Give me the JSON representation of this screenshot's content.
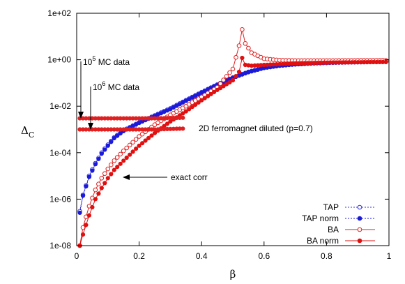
{
  "chart_data": {
    "type": "scatter",
    "x_axis": {
      "label": "β",
      "lim": [
        0,
        1
      ],
      "ticks": [
        0,
        0.2,
        0.4,
        0.6,
        0.8,
        1
      ],
      "tick_labels": [
        "0",
        "0.2",
        "0.4",
        "0.6",
        "0.8",
        "1"
      ]
    },
    "y_axis": {
      "label_main": "Δ",
      "label_sub": "C",
      "scale": "log",
      "lim": [
        1e-08,
        100
      ],
      "ticks": [
        1e-08,
        1e-06,
        0.0001,
        0.01,
        1,
        100
      ],
      "tick_labels": [
        "1e-08",
        "1e-06",
        "1e-04",
        "1e-02",
        "1e+00",
        "1e+02"
      ]
    },
    "grid": false,
    "legend_position": "bottom-right",
    "annotations": {
      "mc5": {
        "prefix": "10",
        "sup": "5",
        "suffix": " MC data"
      },
      "mc6": {
        "prefix": "10",
        "sup": "6",
        "suffix": " MC data"
      },
      "exact": "exact corr",
      "system": "2D ferromagnet diluted (p=0.7)"
    },
    "series": [
      {
        "name": "TAP",
        "color": "#3030e0",
        "marker": "open-circle",
        "line": "dotted",
        "points": [
          [
            0.01,
            3e-07
          ],
          [
            0.02,
            1.5e-06
          ],
          [
            0.04,
            1e-05
          ],
          [
            0.06,
            3.5e-05
          ],
          [
            0.08,
            0.0001
          ],
          [
            0.1,
            0.00022
          ],
          [
            0.12,
            0.00045
          ],
          [
            0.15,
            0.0009
          ],
          [
            0.2,
            0.002
          ],
          [
            0.25,
            0.004
          ],
          [
            0.3,
            0.008
          ],
          [
            0.35,
            0.018
          ],
          [
            0.4,
            0.04
          ],
          [
            0.45,
            0.085
          ],
          [
            0.5,
            0.17
          ],
          [
            0.55,
            0.3
          ],
          [
            0.6,
            0.45
          ],
          [
            0.65,
            0.56
          ],
          [
            0.7,
            0.64
          ],
          [
            0.75,
            0.7
          ],
          [
            0.8,
            0.74
          ],
          [
            0.85,
            0.77
          ],
          [
            0.9,
            0.79
          ],
          [
            0.95,
            0.81
          ],
          [
            1.0,
            0.82
          ]
        ]
      },
      {
        "name": "TAP norm",
        "color": "#1a1ad8",
        "marker": "filled-circle",
        "line": "dotted",
        "points": [
          [
            0.01,
            2.6e-07
          ],
          [
            0.02,
            1.4e-06
          ],
          [
            0.04,
            9e-06
          ],
          [
            0.06,
            3.2e-05
          ],
          [
            0.08,
            9e-05
          ],
          [
            0.1,
            0.0002
          ],
          [
            0.12,
            0.00042
          ],
          [
            0.15,
            0.00085
          ],
          [
            0.2,
            0.0019
          ],
          [
            0.25,
            0.0038
          ],
          [
            0.3,
            0.0075
          ],
          [
            0.35,
            0.017
          ],
          [
            0.4,
            0.038
          ],
          [
            0.45,
            0.082
          ],
          [
            0.5,
            0.165
          ],
          [
            0.55,
            0.29
          ],
          [
            0.6,
            0.44
          ],
          [
            0.65,
            0.55
          ],
          [
            0.7,
            0.63
          ],
          [
            0.75,
            0.69
          ],
          [
            0.8,
            0.73
          ],
          [
            0.85,
            0.76
          ],
          [
            0.9,
            0.78
          ],
          [
            0.95,
            0.8
          ],
          [
            1.0,
            0.81
          ]
        ]
      },
      {
        "name": "BA",
        "color": "#e02020",
        "marker": "open-circle",
        "line": "solid",
        "points": [
          [
            0.01,
            1e-08
          ],
          [
            0.02,
            6e-08
          ],
          [
            0.04,
            5e-07
          ],
          [
            0.06,
            2.5e-06
          ],
          [
            0.08,
            8e-06
          ],
          [
            0.1,
            2e-05
          ],
          [
            0.12,
            4.5e-05
          ],
          [
            0.15,
            0.00012
          ],
          [
            0.2,
            0.0005
          ],
          [
            0.25,
            0.0016
          ],
          [
            0.3,
            0.0042
          ],
          [
            0.35,
            0.01
          ],
          [
            0.4,
            0.025
          ],
          [
            0.45,
            0.065
          ],
          [
            0.5,
            0.4
          ],
          [
            0.52,
            4
          ],
          [
            0.53,
            20
          ],
          [
            0.54,
            5
          ],
          [
            0.56,
            2
          ],
          [
            0.6,
            1.1
          ],
          [
            0.65,
            0.95
          ],
          [
            0.7,
            0.92
          ],
          [
            0.8,
            0.92
          ],
          [
            0.9,
            0.93
          ],
          [
            1.0,
            0.95
          ]
        ]
      },
      {
        "name": "BA norm",
        "color": "#e01010",
        "marker": "filled-circle",
        "line": "solid",
        "points": [
          [
            0.01,
            1e-08
          ],
          [
            0.02,
            3e-08
          ],
          [
            0.04,
            2e-07
          ],
          [
            0.06,
            1e-06
          ],
          [
            0.08,
            3e-06
          ],
          [
            0.1,
            8e-06
          ],
          [
            0.12,
            1.8e-05
          ],
          [
            0.15,
            4.5e-05
          ],
          [
            0.2,
            0.0002
          ],
          [
            0.25,
            0.0007
          ],
          [
            0.3,
            0.0022
          ],
          [
            0.35,
            0.006
          ],
          [
            0.4,
            0.018
          ],
          [
            0.45,
            0.05
          ],
          [
            0.5,
            0.13
          ],
          [
            0.52,
            0.3
          ],
          [
            0.53,
            1.2
          ],
          [
            0.54,
            0.6
          ],
          [
            0.56,
            0.55
          ],
          [
            0.6,
            0.6
          ],
          [
            0.65,
            0.65
          ],
          [
            0.7,
            0.7
          ],
          [
            0.8,
            0.75
          ],
          [
            0.9,
            0.78
          ],
          [
            1.0,
            0.8
          ]
        ]
      },
      {
        "name": "",
        "color": "#e02020",
        "marker": "filled-circle",
        "line": "none",
        "points": [
          [
            0.01,
            0.003
          ],
          [
            0.05,
            0.003
          ],
          [
            0.1,
            0.003
          ],
          [
            0.15,
            0.003
          ],
          [
            0.2,
            0.003
          ],
          [
            0.25,
            0.003
          ],
          [
            0.3,
            0.0031
          ],
          [
            0.35,
            0.0032
          ]
        ]
      },
      {
        "name": "",
        "color": "#e02020",
        "marker": "filled-circle",
        "line": "none",
        "points": [
          [
            0.01,
            0.001
          ],
          [
            0.05,
            0.001
          ],
          [
            0.1,
            0.001
          ],
          [
            0.15,
            0.001
          ],
          [
            0.2,
            0.001
          ],
          [
            0.25,
            0.001
          ],
          [
            0.3,
            0.00105
          ],
          [
            0.35,
            0.0011
          ]
        ]
      }
    ]
  }
}
